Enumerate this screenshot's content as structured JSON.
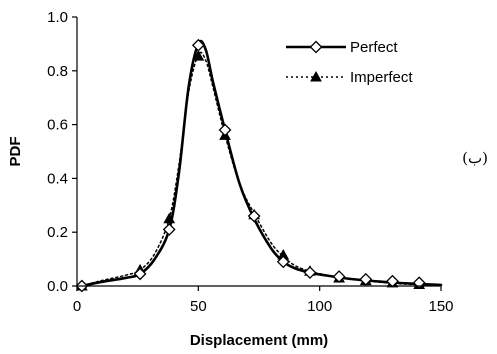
{
  "chart_data": {
    "type": "line",
    "xlabel": "Displacement (mm)",
    "ylabel": "PDF",
    "xlim": [
      0,
      150
    ],
    "ylim": [
      0,
      1.0
    ],
    "x_ticks": [
      "0",
      "50",
      "100",
      "150"
    ],
    "y_ticks": [
      "0.0",
      "0.2",
      "0.4",
      "0.6",
      "0.8",
      "1.0"
    ],
    "grid": false,
    "legend_position": "top-right",
    "side_label": "(ب)",
    "series": [
      {
        "name": "Perfect",
        "line_style": "solid",
        "marker": "open-diamond",
        "color": "#000000",
        "curve": [
          [
            2,
            0.0
          ],
          [
            10,
            0.015
          ],
          [
            20,
            0.03
          ],
          [
            26,
            0.045
          ],
          [
            32,
            0.1
          ],
          [
            38,
            0.21
          ],
          [
            42,
            0.42
          ],
          [
            46,
            0.74
          ],
          [
            50,
            0.9
          ],
          [
            53,
            0.88
          ],
          [
            56,
            0.76
          ],
          [
            61,
            0.58
          ],
          [
            67,
            0.38
          ],
          [
            73,
            0.25
          ],
          [
            80,
            0.14
          ],
          [
            85,
            0.09
          ],
          [
            90,
            0.065
          ],
          [
            96,
            0.05
          ],
          [
            102,
            0.04
          ],
          [
            108,
            0.032
          ],
          [
            114,
            0.025
          ],
          [
            120,
            0.02
          ],
          [
            130,
            0.013
          ],
          [
            140,
            0.008
          ],
          [
            150,
            0.004
          ]
        ],
        "markers": [
          [
            2,
            0.0
          ],
          [
            26,
            0.045
          ],
          [
            38,
            0.21
          ],
          [
            50,
            0.895
          ],
          [
            61,
            0.58
          ],
          [
            73,
            0.26
          ],
          [
            85,
            0.09
          ],
          [
            96,
            0.05
          ],
          [
            108,
            0.035
          ],
          [
            119,
            0.025
          ],
          [
            130,
            0.018
          ],
          [
            141,
            0.012
          ]
        ]
      },
      {
        "name": "Imperfect",
        "line_style": "dotted",
        "marker": "filled-triangle",
        "color": "#000000",
        "curve": [
          [
            2,
            0.0
          ],
          [
            10,
            0.02
          ],
          [
            20,
            0.04
          ],
          [
            26,
            0.06
          ],
          [
            32,
            0.12
          ],
          [
            38,
            0.25
          ],
          [
            42,
            0.45
          ],
          [
            46,
            0.72
          ],
          [
            50,
            0.86
          ],
          [
            53,
            0.84
          ],
          [
            56,
            0.74
          ],
          [
            61,
            0.56
          ],
          [
            67,
            0.38
          ],
          [
            73,
            0.27
          ],
          [
            80,
            0.16
          ],
          [
            85,
            0.11
          ],
          [
            90,
            0.075
          ],
          [
            96,
            0.055
          ],
          [
            102,
            0.042
          ],
          [
            108,
            0.032
          ],
          [
            114,
            0.024
          ],
          [
            120,
            0.018
          ],
          [
            130,
            0.01
          ],
          [
            140,
            0.005
          ],
          [
            150,
            0.002
          ]
        ],
        "markers": [
          [
            2,
            0.0
          ],
          [
            26,
            0.06
          ],
          [
            38,
            0.25
          ],
          [
            50,
            0.855
          ],
          [
            61,
            0.56
          ],
          [
            73,
            0.265
          ],
          [
            85,
            0.115
          ],
          [
            96,
            0.055
          ],
          [
            108,
            0.03
          ],
          [
            119,
            0.02
          ],
          [
            130,
            0.012
          ],
          [
            141,
            0.006
          ]
        ]
      }
    ]
  }
}
